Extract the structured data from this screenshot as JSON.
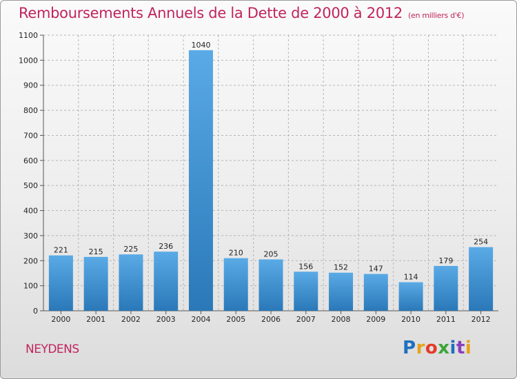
{
  "header": {
    "title": "Remboursements Annuels de la Dette de 2000 à 2012",
    "unit": "(en milliers d'€)"
  },
  "footer": {
    "city": "NEYDENS",
    "logo": "Proxiti"
  },
  "colors": {
    "bar_top": "#5aaae6",
    "bar_bottom": "#2a78b8",
    "title": "#c0245c",
    "grid": "#b5b5b5"
  },
  "chart_data": {
    "type": "bar",
    "title": "Remboursements Annuels de la Dette de 2000 à 2012",
    "xlabel": "",
    "ylabel": "",
    "categories": [
      "2000",
      "2001",
      "2002",
      "2003",
      "2004",
      "2005",
      "2006",
      "2007",
      "2008",
      "2009",
      "2010",
      "2011",
      "2012"
    ],
    "values": [
      221,
      215,
      225,
      236,
      1040,
      210,
      205,
      156,
      152,
      147,
      114,
      179,
      254
    ],
    "ylim": [
      0,
      1100
    ],
    "yticks": [
      0,
      100,
      200,
      300,
      400,
      500,
      600,
      700,
      800,
      900,
      1000,
      1100
    ],
    "grid": true,
    "data_labels": true
  }
}
